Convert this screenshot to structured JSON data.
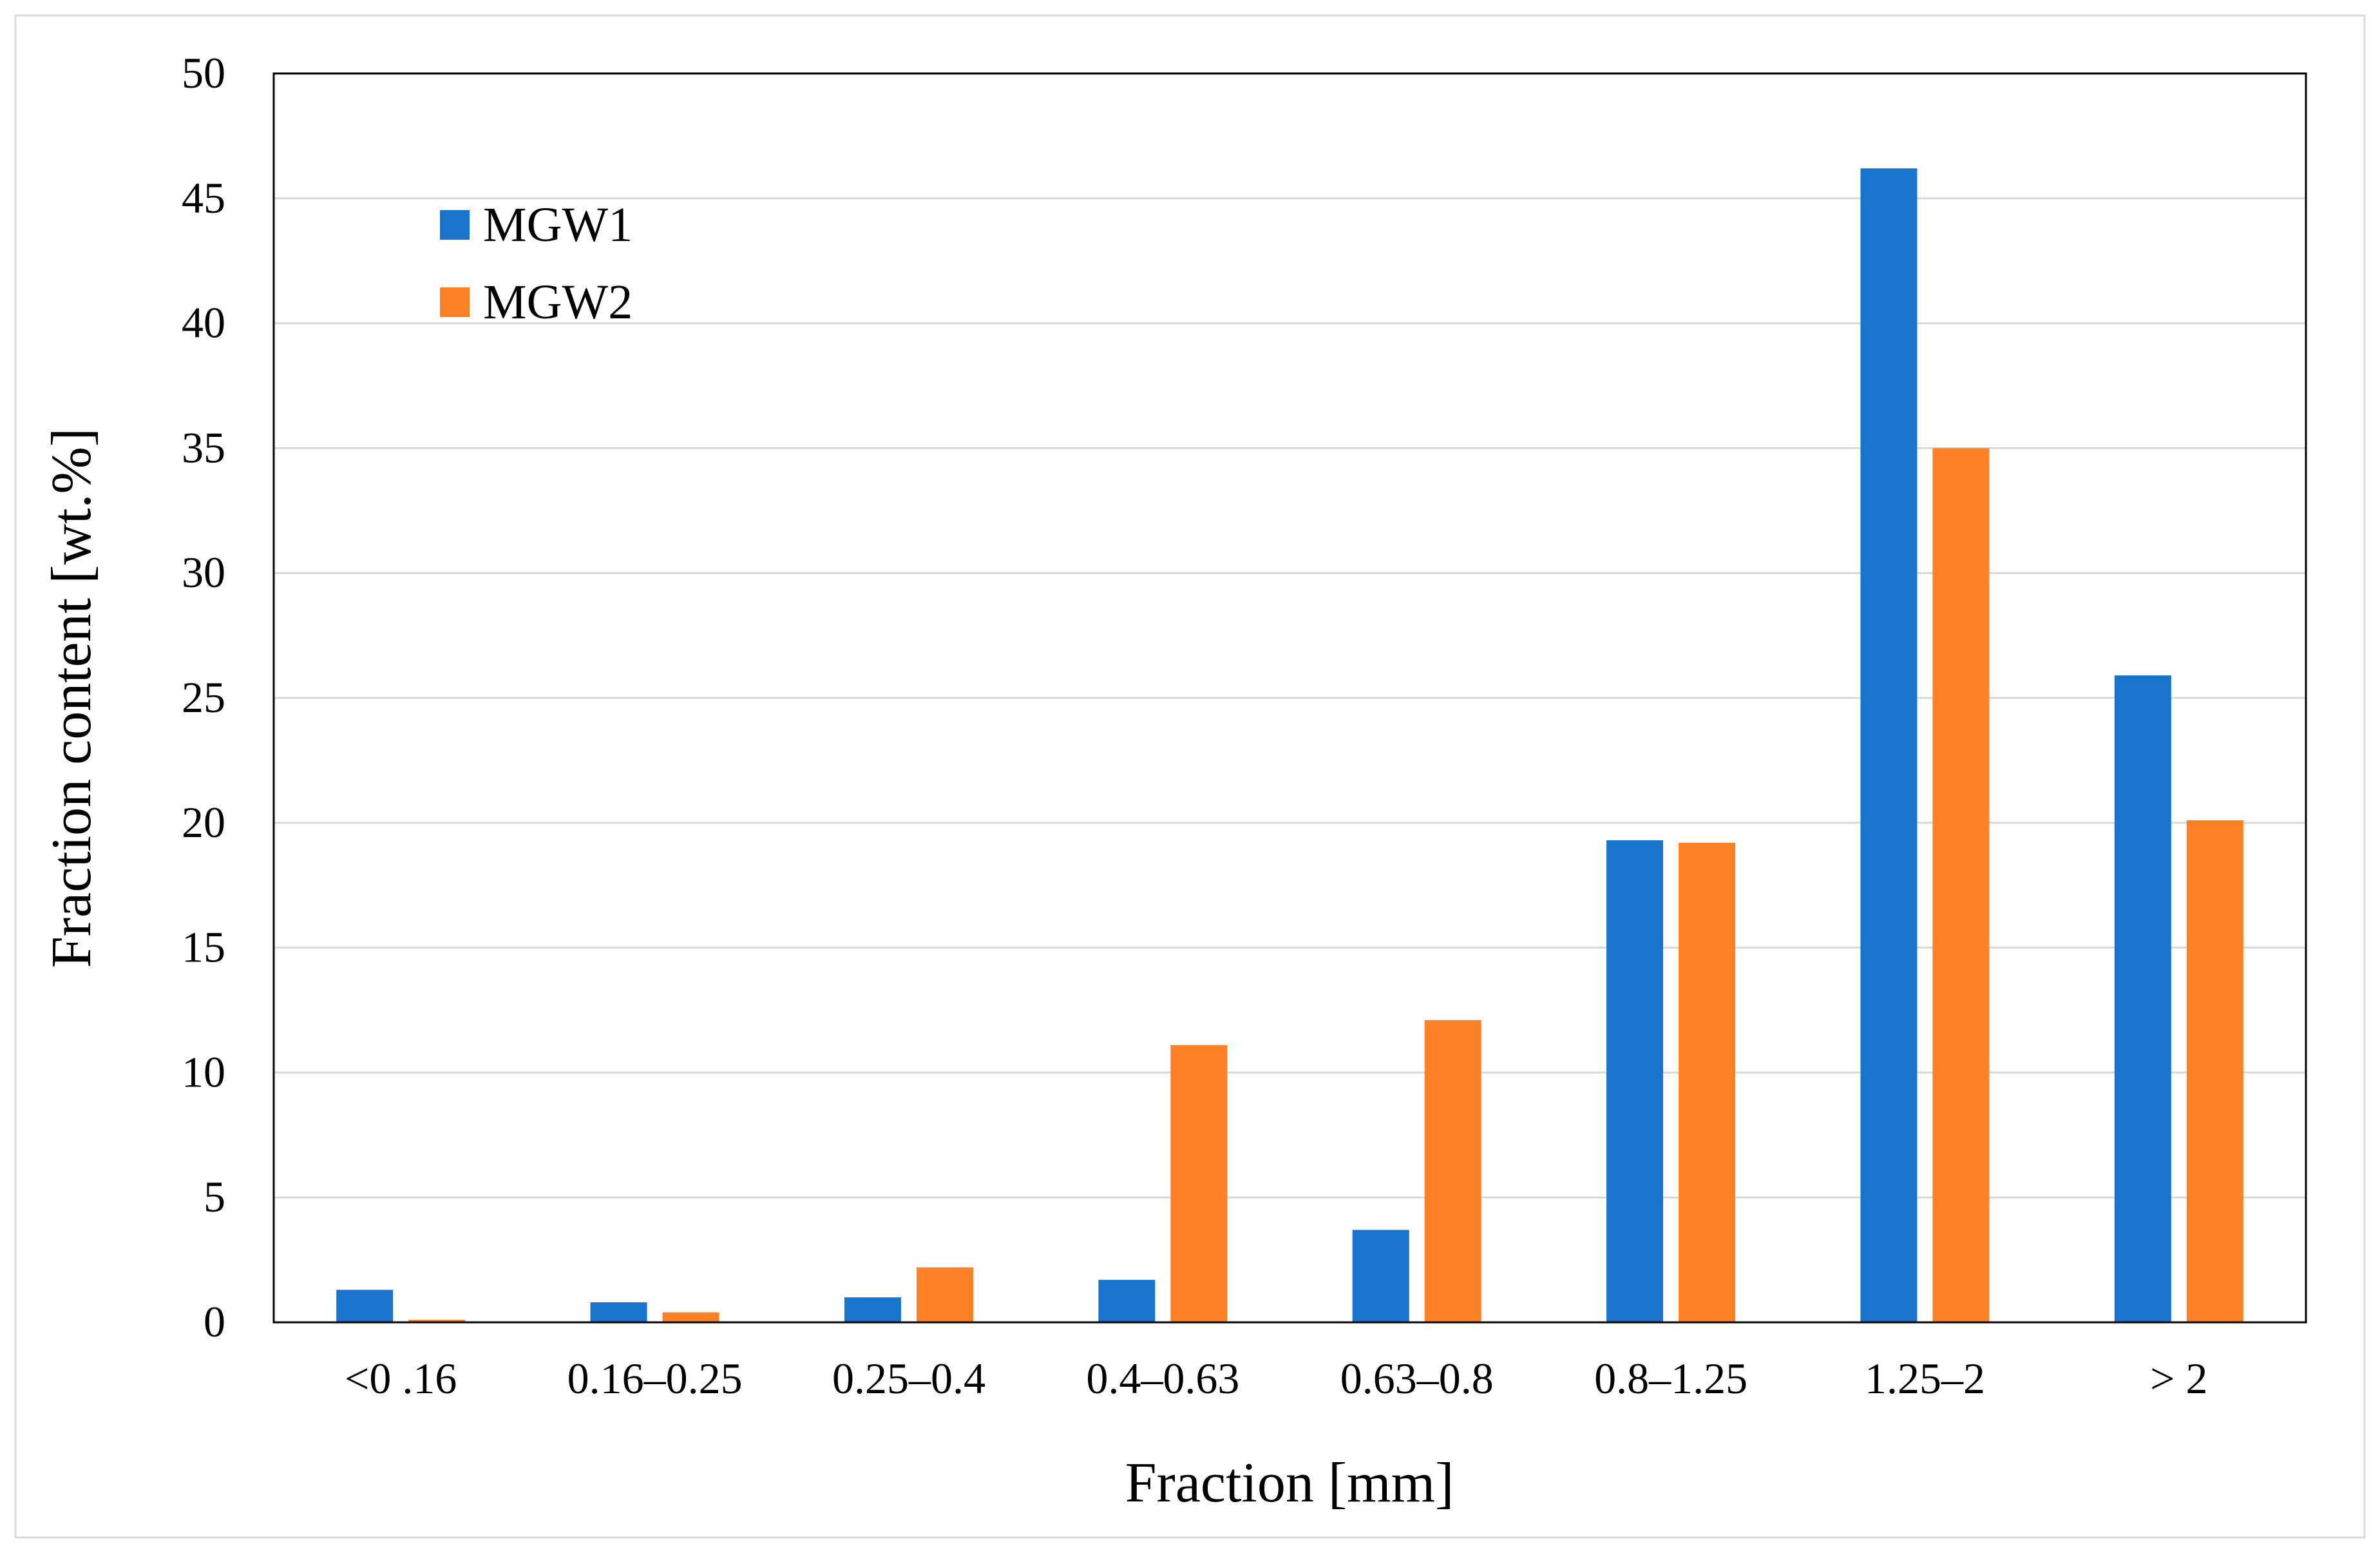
{
  "chart_data": {
    "type": "bar",
    "title": "",
    "xlabel": "Fraction [mm]",
    "ylabel": "Fraction content [wt.%]",
    "ylim": [
      0,
      50
    ],
    "yticks": [
      0,
      5,
      10,
      15,
      20,
      25,
      30,
      35,
      40,
      45,
      50
    ],
    "grid": "horizontal",
    "legend_position": "top-left",
    "categories": [
      "<0 .16",
      "0.16–0.25",
      "0.25–0.4",
      "0.4–0.63",
      "0.63–0.8",
      "0.8–1.25",
      "1.25–2",
      "> 2"
    ],
    "series": [
      {
        "name": "MGW1",
        "color": "#1874CD",
        "values": [
          1.3,
          0.8,
          1.0,
          1.7,
          3.7,
          19.3,
          46.2,
          25.9
        ]
      },
      {
        "name": "MGW2",
        "color": "#FF8126",
        "values": [
          0.1,
          0.4,
          2.2,
          11.1,
          12.1,
          19.2,
          35.0,
          20.1
        ]
      }
    ]
  }
}
